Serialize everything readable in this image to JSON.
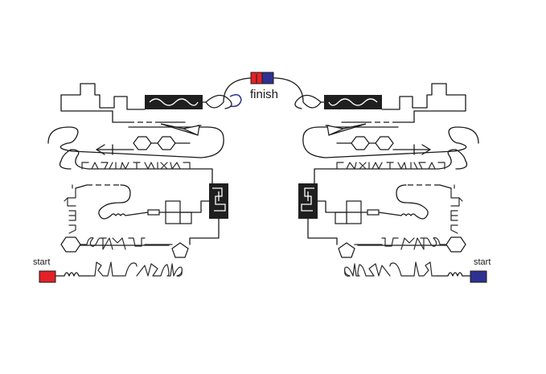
{
  "labels": {
    "finish": "finish",
    "start_left": "start",
    "start_right": "start"
  },
  "colors": {
    "start_left": "#e32128",
    "start_right": "#2e3192",
    "finish_left": "#e32128",
    "finish_right": "#2e3192",
    "track": "#1a1a1a"
  }
}
